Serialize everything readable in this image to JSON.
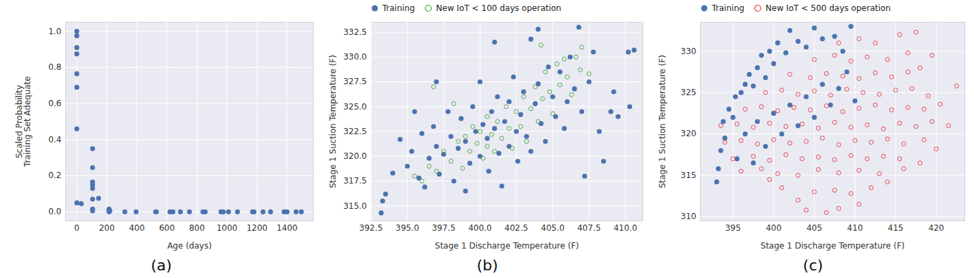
{
  "chart_data": [
    {
      "type": "scatter",
      "caption": "(a)",
      "x_label": "Age (days)",
      "y_label": "Scaled Probability\nTraining Set Adequate",
      "xlim": [
        -75,
        1575
      ],
      "xticks": [
        0,
        200,
        400,
        600,
        800,
        1000,
        1200,
        1400
      ],
      "ylim": [
        -0.05,
        1.05
      ],
      "yticks": [
        {
          "value": 0,
          "label": "0.0"
        },
        {
          "value": 0.2,
          "label": "0.2"
        },
        {
          "value": 0.4,
          "label": "0.4"
        },
        {
          "value": 0.6,
          "label": "0.6"
        },
        {
          "value": 0.8,
          "label": "0.8"
        },
        {
          "value": 1.0,
          "label": "1.0"
        }
      ],
      "grid": true,
      "series": [
        {
          "color": "#4c72b0",
          "marker": "filled",
          "x": [
            0,
            0,
            0,
            0,
            0,
            0,
            0,
            0,
            30,
            105,
            105,
            105,
            105,
            105,
            105,
            105,
            105,
            145,
            215,
            215,
            215,
            215,
            220,
            320,
            395,
            525,
            530,
            620,
            640,
            690,
            750,
            840,
            855,
            960,
            975,
            1010,
            1070,
            1170,
            1180,
            1240,
            1290,
            1380,
            1400,
            1460,
            1495
          ],
          "values": [
            1.0,
            0.975,
            0.91,
            0.875,
            0.765,
            0.69,
            0.46,
            0.05,
            0.045,
            0.35,
            0.245,
            0.165,
            0.15,
            0.13,
            0.07,
            0.015,
            0.005,
            0.075,
            0.015,
            0.01,
            0.005,
            0.0,
            0.005,
            0,
            0,
            0,
            0,
            0,
            0,
            0,
            0,
            0,
            0,
            0,
            0,
            0,
            0,
            0,
            0,
            0,
            0,
            0,
            0,
            0,
            0
          ]
        }
      ]
    },
    {
      "type": "scatter",
      "caption": "(b)",
      "x_label": "Stage 1 Discharge Temperature (F)",
      "y_label": "Stage 1 Suction Temperature (F)",
      "xlim": [
        392.5,
        411.2
      ],
      "xticks": [
        {
          "value": 392.5,
          "label": "392.5"
        },
        {
          "value": 395,
          "label": "395.0"
        },
        {
          "value": 397.5,
          "label": "397.5"
        },
        {
          "value": 400,
          "label": "400.0"
        },
        {
          "value": 402.5,
          "label": "402.5"
        },
        {
          "value": 405,
          "label": "405.0"
        },
        {
          "value": 407.5,
          "label": "407.5"
        },
        {
          "value": 410,
          "label": "410.0"
        }
      ],
      "ylim": [
        313.5,
        333.5
      ],
      "yticks": [
        {
          "value": 315,
          "label": "315.0"
        },
        {
          "value": 317.5,
          "label": "317.5"
        },
        {
          "value": 320,
          "label": "320.0"
        },
        {
          "value": 322.5,
          "label": "322.5"
        },
        {
          "value": 325,
          "label": "325.0"
        },
        {
          "value": 327.5,
          "label": "327.5"
        },
        {
          "value": 330,
          "label": "330.0"
        },
        {
          "value": 332.5,
          "label": "332.5"
        }
      ],
      "grid": true,
      "legend": "upper left",
      "series": [
        {
          "name": "Training",
          "color": "#4c72b0",
          "marker": "filled",
          "x": [
            393.2,
            393.3,
            393.5,
            394.0,
            394.5,
            395.0,
            395.3,
            395.8,
            396.0,
            396.2,
            396.5,
            396.8,
            397.0,
            397.2,
            397.5,
            397.8,
            398.0,
            398.2,
            398.5,
            398.7,
            399.0,
            399.0,
            399.3,
            399.5,
            399.7,
            400.0,
            400.0,
            400.2,
            400.5,
            400.6,
            400.8,
            401.0,
            401.2,
            401.3,
            401.5,
            401.7,
            402.0,
            402.0,
            402.3,
            402.5,
            402.6,
            402.8,
            403.0,
            403.2,
            403.5,
            403.5,
            403.8,
            404.0,
            404.2,
            404.5,
            404.7,
            405.0,
            405.2,
            405.5,
            405.8,
            406.0,
            406.2,
            406.5,
            406.8,
            407.0,
            407.2,
            407.5,
            407.8,
            408.2,
            408.5,
            409.0,
            409.2,
            409.5,
            410.2,
            410.6,
            410.3,
            397.0,
            395.5,
            404.0,
            401.0
          ],
          "values": [
            314.3,
            315.5,
            316.2,
            318.3,
            321.7,
            319.0,
            320.5,
            317.8,
            322.3,
            316.9,
            319.8,
            323.0,
            321.0,
            318.2,
            320.2,
            324.5,
            322.0,
            317.5,
            320.8,
            323.8,
            321.5,
            316.5,
            319.3,
            325.0,
            322.5,
            320.0,
            327.5,
            323.2,
            321.8,
            318.5,
            324.5,
            322.8,
            326.0,
            320.3,
            317.0,
            323.5,
            321.0,
            325.5,
            328.0,
            322.5,
            319.5,
            324.2,
            326.5,
            322.0,
            320.5,
            331.8,
            325.3,
            327.3,
            323.3,
            321.5,
            329.0,
            326.0,
            324.0,
            328.5,
            322.8,
            325.5,
            330.0,
            326.8,
            333.0,
            324.5,
            318.0,
            327.5,
            330.5,
            322.5,
            319.5,
            324.5,
            326.5,
            324.0,
            330.5,
            330.7,
            325.0,
            327.5,
            324.5,
            332.8,
            331.5
          ]
        },
        {
          "name": "New IoT < 100 days operation",
          "color": "#3fa33f",
          "marker": "open",
          "x": [
            396.0,
            396.5,
            397.0,
            397.5,
            398.0,
            398.5,
            398.8,
            399.0,
            399.3,
            399.5,
            399.8,
            400.0,
            400.2,
            400.5,
            400.5,
            400.8,
            401.0,
            401.2,
            401.5,
            401.8,
            402.0,
            402.2,
            402.5,
            402.8,
            403.0,
            403.2,
            403.5,
            403.8,
            404.0,
            404.3,
            404.5,
            404.8,
            405.0,
            405.3,
            405.5,
            405.8,
            406.0,
            406.3,
            406.6,
            406.9,
            407.0,
            407.5,
            404.2,
            396.8,
            398.2,
            395.5
          ],
          "values": [
            317.5,
            319.0,
            318.5,
            320.5,
            319.5,
            321.5,
            318.8,
            322.0,
            320.5,
            323.0,
            321.3,
            322.5,
            319.8,
            321.0,
            324.0,
            322.2,
            320.5,
            323.5,
            321.8,
            325.0,
            322.8,
            320.8,
            324.5,
            323.0,
            326.0,
            321.5,
            324.8,
            327.0,
            323.5,
            325.8,
            328.5,
            326.5,
            324.3,
            329.3,
            327.2,
            329.8,
            328.0,
            326.2,
            330.0,
            328.7,
            331.0,
            328.3,
            331.2,
            327.0,
            325.3,
            318.0
          ]
        }
      ]
    },
    {
      "type": "scatter",
      "caption": "(c)",
      "x_label": "Stage 1 Discharge Temperature (F)",
      "y_label": "Stage 1 Suction Temperature (F)",
      "xlim": [
        391,
        423.5
      ],
      "xticks": [
        395,
        400,
        405,
        410,
        415,
        420
      ],
      "ylim": [
        309.5,
        333.5
      ],
      "yticks": [
        310,
        315,
        320,
        325,
        330
      ],
      "grid": true,
      "legend": "upper left",
      "series": [
        {
          "name": "Training",
          "color": "#4c72b0",
          "marker": "filled",
          "x": [
            393.0,
            393.2,
            393.5,
            393.8,
            394.0,
            394.5,
            395.0,
            395.3,
            396.0,
            396.5,
            397.0,
            397.5,
            398.0,
            398.5,
            399.0,
            399.5,
            400.0,
            400.5,
            401.5,
            402.0,
            403.0,
            404.0,
            405.0,
            406.0,
            407.5,
            408.5,
            409.5,
            395.5,
            396.5,
            397.5,
            398.0,
            399.0,
            400.0,
            401.0,
            402.0,
            403.0,
            404.0,
            405.0,
            406.0,
            407.0,
            408.0,
            409.0,
            410.0
          ],
          "values": [
            314.2,
            315.8,
            318.0,
            321.5,
            319.5,
            323.0,
            322.0,
            324.5,
            325.0,
            326.0,
            327.2,
            325.8,
            328.0,
            329.5,
            326.8,
            330.0,
            328.5,
            331.0,
            329.8,
            332.5,
            331.2,
            330.5,
            332.8,
            331.5,
            331.8,
            330.0,
            333.0,
            317.0,
            320.0,
            316.5,
            321.5,
            318.5,
            322.5,
            320.0,
            323.5,
            321.0,
            324.5,
            322.0,
            326.0,
            323.5,
            325.5,
            327.5,
            324.0
          ]
        },
        {
          "name": "New IoT < 500 days operation",
          "color": "#e5363b",
          "marker": "open",
          "x": [
            404.0,
            406.5,
            408.0,
            410.5,
            403.0,
            401.0,
            405.0,
            407.5,
            409.5,
            412.0,
            399.5,
            414.0,
            396.0,
            398.5,
            400.5,
            403.0,
            405.5,
            408.0,
            410.5,
            413.0,
            416.0,
            395.0,
            397.5,
            399.5,
            401.5,
            403.5,
            405.5,
            407.5,
            409.5,
            411.5,
            413.5,
            415.5,
            418.0,
            394.0,
            396.0,
            398.0,
            400.0,
            402.0,
            404.0,
            406.0,
            408.0,
            410.0,
            412.0,
            414.0,
            416.0,
            418.5,
            420.0,
            393.5,
            395.5,
            397.5,
            399.5,
            401.5,
            403.5,
            405.5,
            407.5,
            409.5,
            411.5,
            413.5,
            415.5,
            417.5,
            419.5,
            421.5,
            396.5,
            398.5,
            400.5,
            402.5,
            404.5,
            406.5,
            408.5,
            410.5,
            412.5,
            414.5,
            416.5,
            418.5,
            420.5,
            422.5,
            399.0,
            401.0,
            403.0,
            405.0,
            407.0,
            409.0,
            411.0,
            413.0,
            415.0,
            417.0,
            419.0,
            402.0,
            404.5,
            406.5,
            408.5,
            410.5,
            412.5,
            414.5,
            416.5,
            418.0,
            405.0,
            407.5,
            409.5,
            411.5,
            414.0,
            416.5,
            419.5,
            408.0,
            410.5,
            412.5,
            415.5,
            417.5
          ],
          "values": [
            310.8,
            310.5,
            311.0,
            311.5,
            312.0,
            313.5,
            313.0,
            313.2,
            312.8,
            313.5,
            314.5,
            314.2,
            315.5,
            315.8,
            315.2,
            315.0,
            315.7,
            315.3,
            315.6,
            315.2,
            315.8,
            317.0,
            317.3,
            316.8,
            317.5,
            317.0,
            317.2,
            316.9,
            317.4,
            317.0,
            317.3,
            317.0,
            316.5,
            319.0,
            319.2,
            318.8,
            319.3,
            318.9,
            319.1,
            319.5,
            318.7,
            319.2,
            319.0,
            319.4,
            318.8,
            319.3,
            318.2,
            321.0,
            321.2,
            320.8,
            321.3,
            320.9,
            321.2,
            320.7,
            321.4,
            320.8,
            321.1,
            320.6,
            321.3,
            320.9,
            321.5,
            321.0,
            323.0,
            323.3,
            322.8,
            323.2,
            322.9,
            323.4,
            322.7,
            323.1,
            323.5,
            322.9,
            323.2,
            323.0,
            323.6,
            325.8,
            325.0,
            325.3,
            324.8,
            325.2,
            324.7,
            325.4,
            325.0,
            324.8,
            325.3,
            325.5,
            324.6,
            327.2,
            326.8,
            327.3,
            327.0,
            326.7,
            327.4,
            326.9,
            327.5,
            328.0,
            329.0,
            329.5,
            328.8,
            329.3,
            329.0,
            329.8,
            329.5,
            331.0,
            331.5,
            331.0,
            332.0,
            332.3
          ]
        }
      ]
    }
  ]
}
